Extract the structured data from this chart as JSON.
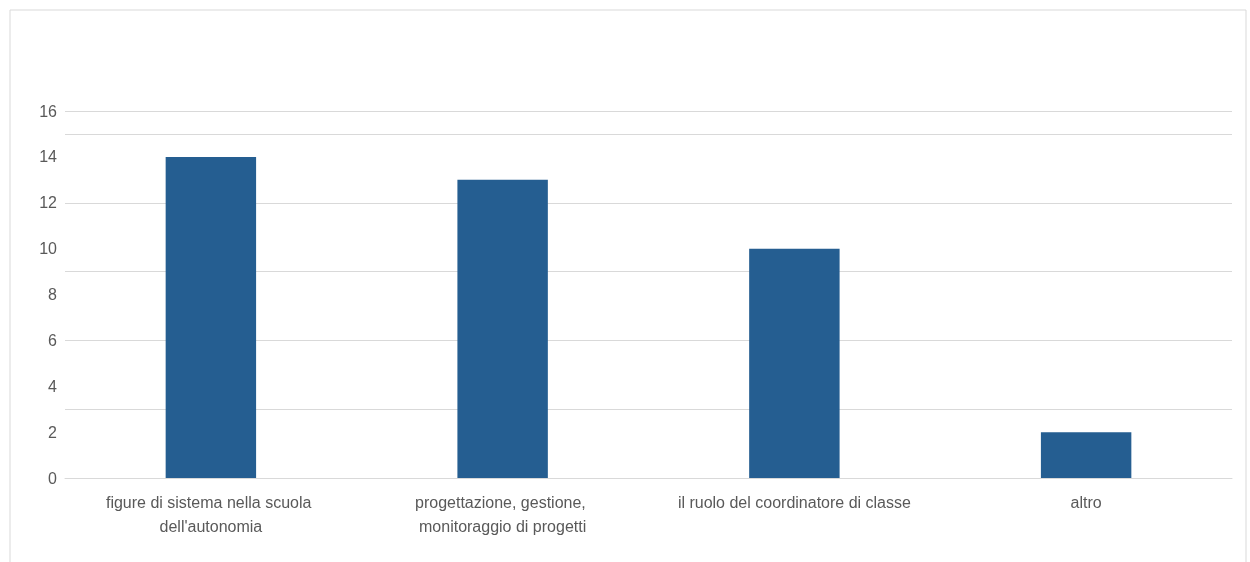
{
  "chart_data": {
    "type": "bar",
    "categories": [
      "figure di sistema nella scuola dell'autonomia",
      "progettazione, gestione, monitoraggio di progetti",
      "il ruolo del coordinatore di classe",
      "altro"
    ],
    "values": [
      14,
      13,
      10,
      2
    ],
    "color": "#255e91",
    "ylim": [
      0,
      16
    ],
    "yticks": [
      0,
      2,
      4,
      6,
      8,
      10,
      12,
      14,
      16
    ],
    "grid": "y"
  }
}
